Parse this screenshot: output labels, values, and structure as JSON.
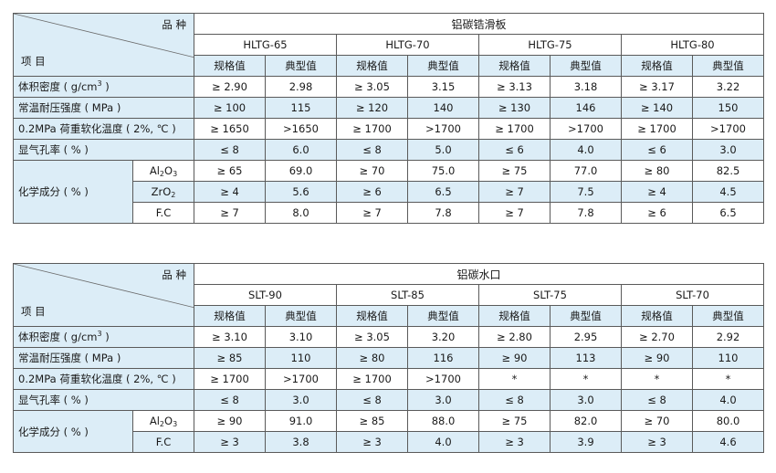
{
  "table1": {
    "corner_top": "品 种",
    "corner_bottom": "项 目",
    "group_title": "铝碳锆滑板",
    "grades": [
      "HLTG-65",
      "HLTG-70",
      "HLTG-75",
      "HLTG-80"
    ],
    "sub_headers": [
      "规格值",
      "典型值"
    ],
    "rows": [
      {
        "label": "体积密度 ( g/cm³ )",
        "values": [
          "≥ 2.90",
          "2.98",
          "≥ 3.05",
          "3.15",
          "≥ 3.13",
          "3.18",
          "≥ 3.17",
          "3.22"
        ]
      },
      {
        "label": "常温耐压强度 ( MPa )",
        "values": [
          "≥ 100",
          "115",
          "≥ 120",
          "140",
          "≥ 130",
          "146",
          "≥ 140",
          "150"
        ]
      },
      {
        "label": "0.2MPa 荷重软化温度 ( 2%, ℃ )",
        "values": [
          "≥ 1650",
          ">1650",
          "≥ 1700",
          ">1700",
          "≥ 1700",
          ">1700",
          "≥ 1700",
          ">1700"
        ]
      },
      {
        "label": "显气孔率 ( % )",
        "values": [
          "≤ 8",
          "6.0",
          "≤ 8",
          "5.0",
          "≤ 6",
          "4.0",
          "≤ 6",
          "3.0"
        ]
      }
    ],
    "chem_label": "化学成分 ( % )",
    "chem_rows": [
      {
        "component": "Al2O3",
        "values": [
          "≥ 65",
          "69.0",
          "≥ 70",
          "75.0",
          "≥ 75",
          "77.0",
          "≥ 80",
          "82.5"
        ]
      },
      {
        "component": "ZrO2",
        "values": [
          "≥ 4",
          "5.6",
          "≥ 6",
          "6.5",
          "≥ 7",
          "7.5",
          "≥ 4",
          "4.5"
        ]
      },
      {
        "component": "F.C",
        "values": [
          "≥ 7",
          "8.0",
          "≥ 7",
          "7.8",
          "≥ 7",
          "7.8",
          "≥ 6",
          "6.5"
        ]
      }
    ]
  },
  "table2": {
    "corner_top": "品 种",
    "corner_bottom": "项 目",
    "group_title": "铝碳水口",
    "grades": [
      "SLT-90",
      "SLT-85",
      "SLT-75",
      "SLT-70"
    ],
    "sub_headers": [
      "规格值",
      "典型值"
    ],
    "rows": [
      {
        "label": "体积密度 ( g/cm³ )",
        "values": [
          "≥ 3.10",
          "3.10",
          "≥ 3.05",
          "3.20",
          "≥ 2.80",
          "2.95",
          "≥ 2.70",
          "2.92"
        ]
      },
      {
        "label": "常温耐压强度 ( MPa )",
        "values": [
          "≥ 85",
          "110",
          "≥ 80",
          "116",
          "≥ 90",
          "113",
          "≥ 90",
          "110"
        ]
      },
      {
        "label": "0.2MPa 荷重软化温度 ( 2%, ℃ )",
        "values": [
          "≥ 1700",
          ">1700",
          "≥ 1700",
          ">1700",
          "*",
          "*",
          "*",
          "*"
        ]
      },
      {
        "label": "显气孔率 ( % )",
        "values": [
          "≤ 8",
          "3.0",
          "≤ 8",
          "3.0",
          "≤ 8",
          "3.0",
          "≤ 8",
          "4.0"
        ]
      }
    ],
    "chem_label": "化学成分 ( % )",
    "chem_rows": [
      {
        "component": "Al2O3",
        "values": [
          "≥ 90",
          "91.0",
          "≥ 85",
          "88.0",
          "≥ 75",
          "82.0",
          "≥ 70",
          "80.0"
        ]
      },
      {
        "component": "F.C",
        "values": [
          "≥ 3",
          "3.8",
          "≥ 3",
          "4.0",
          "≥ 3",
          "3.9",
          "≥ 3",
          "4.6"
        ]
      }
    ]
  }
}
